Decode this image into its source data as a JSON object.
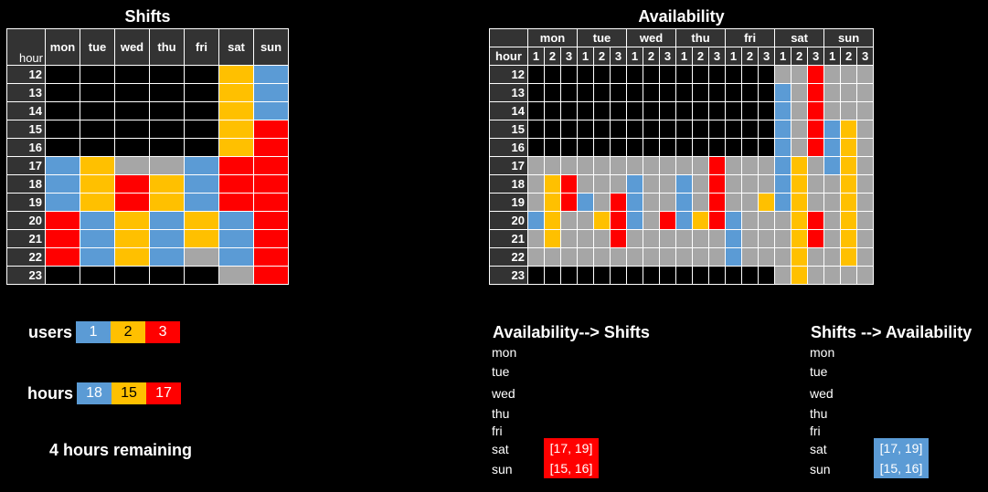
{
  "shifts": {
    "title": "Shifts",
    "hour_label": "hour",
    "days": [
      "mon",
      "tue",
      "wed",
      "thu",
      "fri",
      "sat",
      "sun"
    ],
    "hours": [
      "12",
      "13",
      "14",
      "15",
      "16",
      "17",
      "18",
      "19",
      "20",
      "21",
      "22",
      "23"
    ],
    "cells": [
      [
        "b",
        "b",
        "b",
        "b",
        "b",
        "2",
        "1"
      ],
      [
        "b",
        "b",
        "b",
        "b",
        "b",
        "2",
        "1"
      ],
      [
        "b",
        "b",
        "b",
        "b",
        "b",
        "2",
        "1"
      ],
      [
        "b",
        "b",
        "b",
        "b",
        "b",
        "2",
        "3"
      ],
      [
        "b",
        "b",
        "b",
        "b",
        "b",
        "2",
        "3"
      ],
      [
        "1",
        "2",
        "g",
        "g",
        "1",
        "3",
        "3"
      ],
      [
        "1",
        "2",
        "3",
        "2",
        "1",
        "3",
        "3"
      ],
      [
        "1",
        "2",
        "3",
        "2",
        "1",
        "3",
        "3"
      ],
      [
        "3",
        "1",
        "2",
        "1",
        "2",
        "1",
        "3"
      ],
      [
        "3",
        "1",
        "2",
        "1",
        "2",
        "1",
        "3"
      ],
      [
        "3",
        "1",
        "2",
        "1",
        "g",
        "1",
        "3"
      ],
      [
        "b",
        "b",
        "b",
        "b",
        "b",
        "g",
        "3"
      ]
    ]
  },
  "availability": {
    "title": "Availability",
    "hour_label": "hour",
    "days": [
      "mon",
      "tue",
      "wed",
      "thu",
      "fri",
      "sat",
      "sun"
    ],
    "users": [
      "1",
      "2",
      "3"
    ],
    "hours": [
      "12",
      "13",
      "14",
      "15",
      "16",
      "17",
      "18",
      "19",
      "20",
      "21",
      "22",
      "23"
    ],
    "cells": [
      [
        "b",
        "b",
        "b",
        "b",
        "b",
        "b",
        "b",
        "b",
        "b",
        "b",
        "b",
        "b",
        "b",
        "b",
        "b",
        "g",
        "g",
        "3",
        "g",
        "g",
        "g"
      ],
      [
        "b",
        "b",
        "b",
        "b",
        "b",
        "b",
        "b",
        "b",
        "b",
        "b",
        "b",
        "b",
        "b",
        "b",
        "b",
        "1",
        "g",
        "3",
        "g",
        "g",
        "g"
      ],
      [
        "b",
        "b",
        "b",
        "b",
        "b",
        "b",
        "b",
        "b",
        "b",
        "b",
        "b",
        "b",
        "b",
        "b",
        "b",
        "1",
        "g",
        "3",
        "g",
        "g",
        "g"
      ],
      [
        "b",
        "b",
        "b",
        "b",
        "b",
        "b",
        "b",
        "b",
        "b",
        "b",
        "b",
        "b",
        "b",
        "b",
        "b",
        "1",
        "g",
        "3",
        "1",
        "2",
        "g"
      ],
      [
        "b",
        "b",
        "b",
        "b",
        "b",
        "b",
        "b",
        "b",
        "b",
        "b",
        "b",
        "b",
        "b",
        "b",
        "b",
        "1",
        "g",
        "3",
        "1",
        "2",
        "g"
      ],
      [
        "g",
        "g",
        "g",
        "g",
        "g",
        "g",
        "g",
        "g",
        "g",
        "g",
        "g",
        "3",
        "g",
        "g",
        "g",
        "1",
        "2",
        "g",
        "1",
        "2",
        "g"
      ],
      [
        "g",
        "2",
        "3",
        "g",
        "g",
        "g",
        "1",
        "g",
        "g",
        "1",
        "g",
        "3",
        "g",
        "g",
        "g",
        "1",
        "2",
        "g",
        "g",
        "2",
        "g"
      ],
      [
        "g",
        "2",
        "3",
        "1",
        "g",
        "3",
        "1",
        "g",
        "g",
        "1",
        "g",
        "3",
        "g",
        "g",
        "2",
        "1",
        "2",
        "g",
        "g",
        "2",
        "g"
      ],
      [
        "1",
        "2",
        "g",
        "g",
        "2",
        "3",
        "1",
        "g",
        "3",
        "1",
        "2",
        "3",
        "1",
        "g",
        "g",
        "g",
        "2",
        "3",
        "g",
        "2",
        "g"
      ],
      [
        "g",
        "2",
        "g",
        "g",
        "g",
        "3",
        "g",
        "g",
        "g",
        "g",
        "g",
        "g",
        "1",
        "g",
        "g",
        "g",
        "2",
        "3",
        "g",
        "2",
        "g"
      ],
      [
        "g",
        "g",
        "g",
        "g",
        "g",
        "g",
        "g",
        "g",
        "g",
        "g",
        "g",
        "g",
        "1",
        "g",
        "g",
        "g",
        "2",
        "g",
        "g",
        "2",
        "g"
      ],
      [
        "b",
        "b",
        "b",
        "b",
        "b",
        "b",
        "b",
        "b",
        "b",
        "b",
        "b",
        "b",
        "b",
        "b",
        "b",
        "g",
        "2",
        "g",
        "g",
        "g",
        "g"
      ]
    ]
  },
  "stats": {
    "users_label": "users",
    "users": [
      {
        "value": "1",
        "color": "#5b9bd5"
      },
      {
        "value": "2",
        "color": "#ffc000"
      },
      {
        "value": "3",
        "color": "#ff0000"
      }
    ],
    "hours_label": "hours",
    "hours": [
      {
        "value": "18",
        "color": "#5b9bd5"
      },
      {
        "value": "15",
        "color": "#ffc000"
      },
      {
        "value": "17",
        "color": "#ff0000"
      }
    ],
    "remaining": "4 hours remaining"
  },
  "avail_to_shifts": {
    "title": "Availability--> Shifts",
    "days": [
      "mon",
      "tue",
      "wed",
      "thu",
      "fri",
      "sat",
      "sun"
    ],
    "values": [
      "",
      "",
      "",
      "",
      "",
      "[17, 19]",
      "[15, 16]"
    ],
    "color": "#ff0000"
  },
  "shifts_to_avail": {
    "title": "Shifts --> Availability",
    "days": [
      "mon",
      "tue",
      "wed",
      "thu",
      "fri",
      "sat",
      "sun"
    ],
    "values": [
      "",
      "",
      "",
      "",
      "",
      "[17, 19]",
      "[15, 16]"
    ],
    "color": "#5b9bd5"
  },
  "colors": {
    "user1": "#5b9bd5",
    "user2": "#ffc000",
    "user3": "#ff0000",
    "unavailable": "#a6a6a6",
    "empty": "#000000"
  }
}
